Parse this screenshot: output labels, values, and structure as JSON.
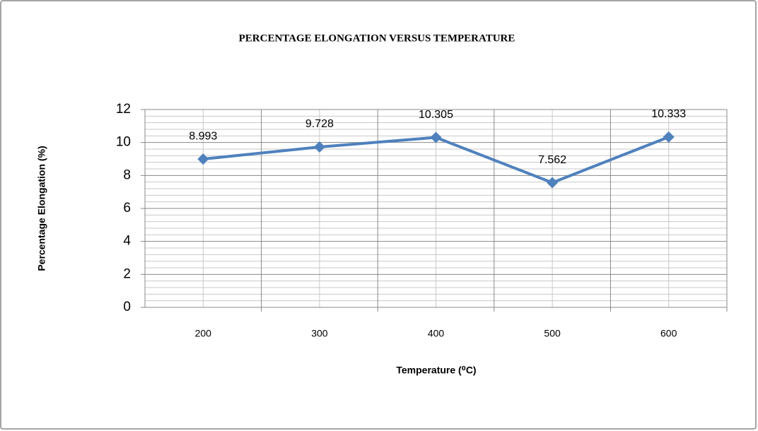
{
  "chart_data": {
    "type": "line",
    "title": "PERCENTAGE ELONGATION VERSUS TEMPERATURE",
    "x_label": "Temperature (⁰C)",
    "y_label": "Percentage Elongation (%)",
    "categories": [
      "200",
      "300",
      "400",
      "500",
      "600"
    ],
    "series": [
      {
        "name": "Percentage Elongation",
        "color": "#4f81bd",
        "values": [
          8.993,
          9.728,
          10.305,
          7.562,
          10.333
        ]
      }
    ],
    "ylim": [
      0,
      12
    ],
    "yticks": [
      0,
      2,
      4,
      6,
      8,
      10,
      12
    ],
    "grid": true,
    "minor_grid": true,
    "legend": false
  }
}
